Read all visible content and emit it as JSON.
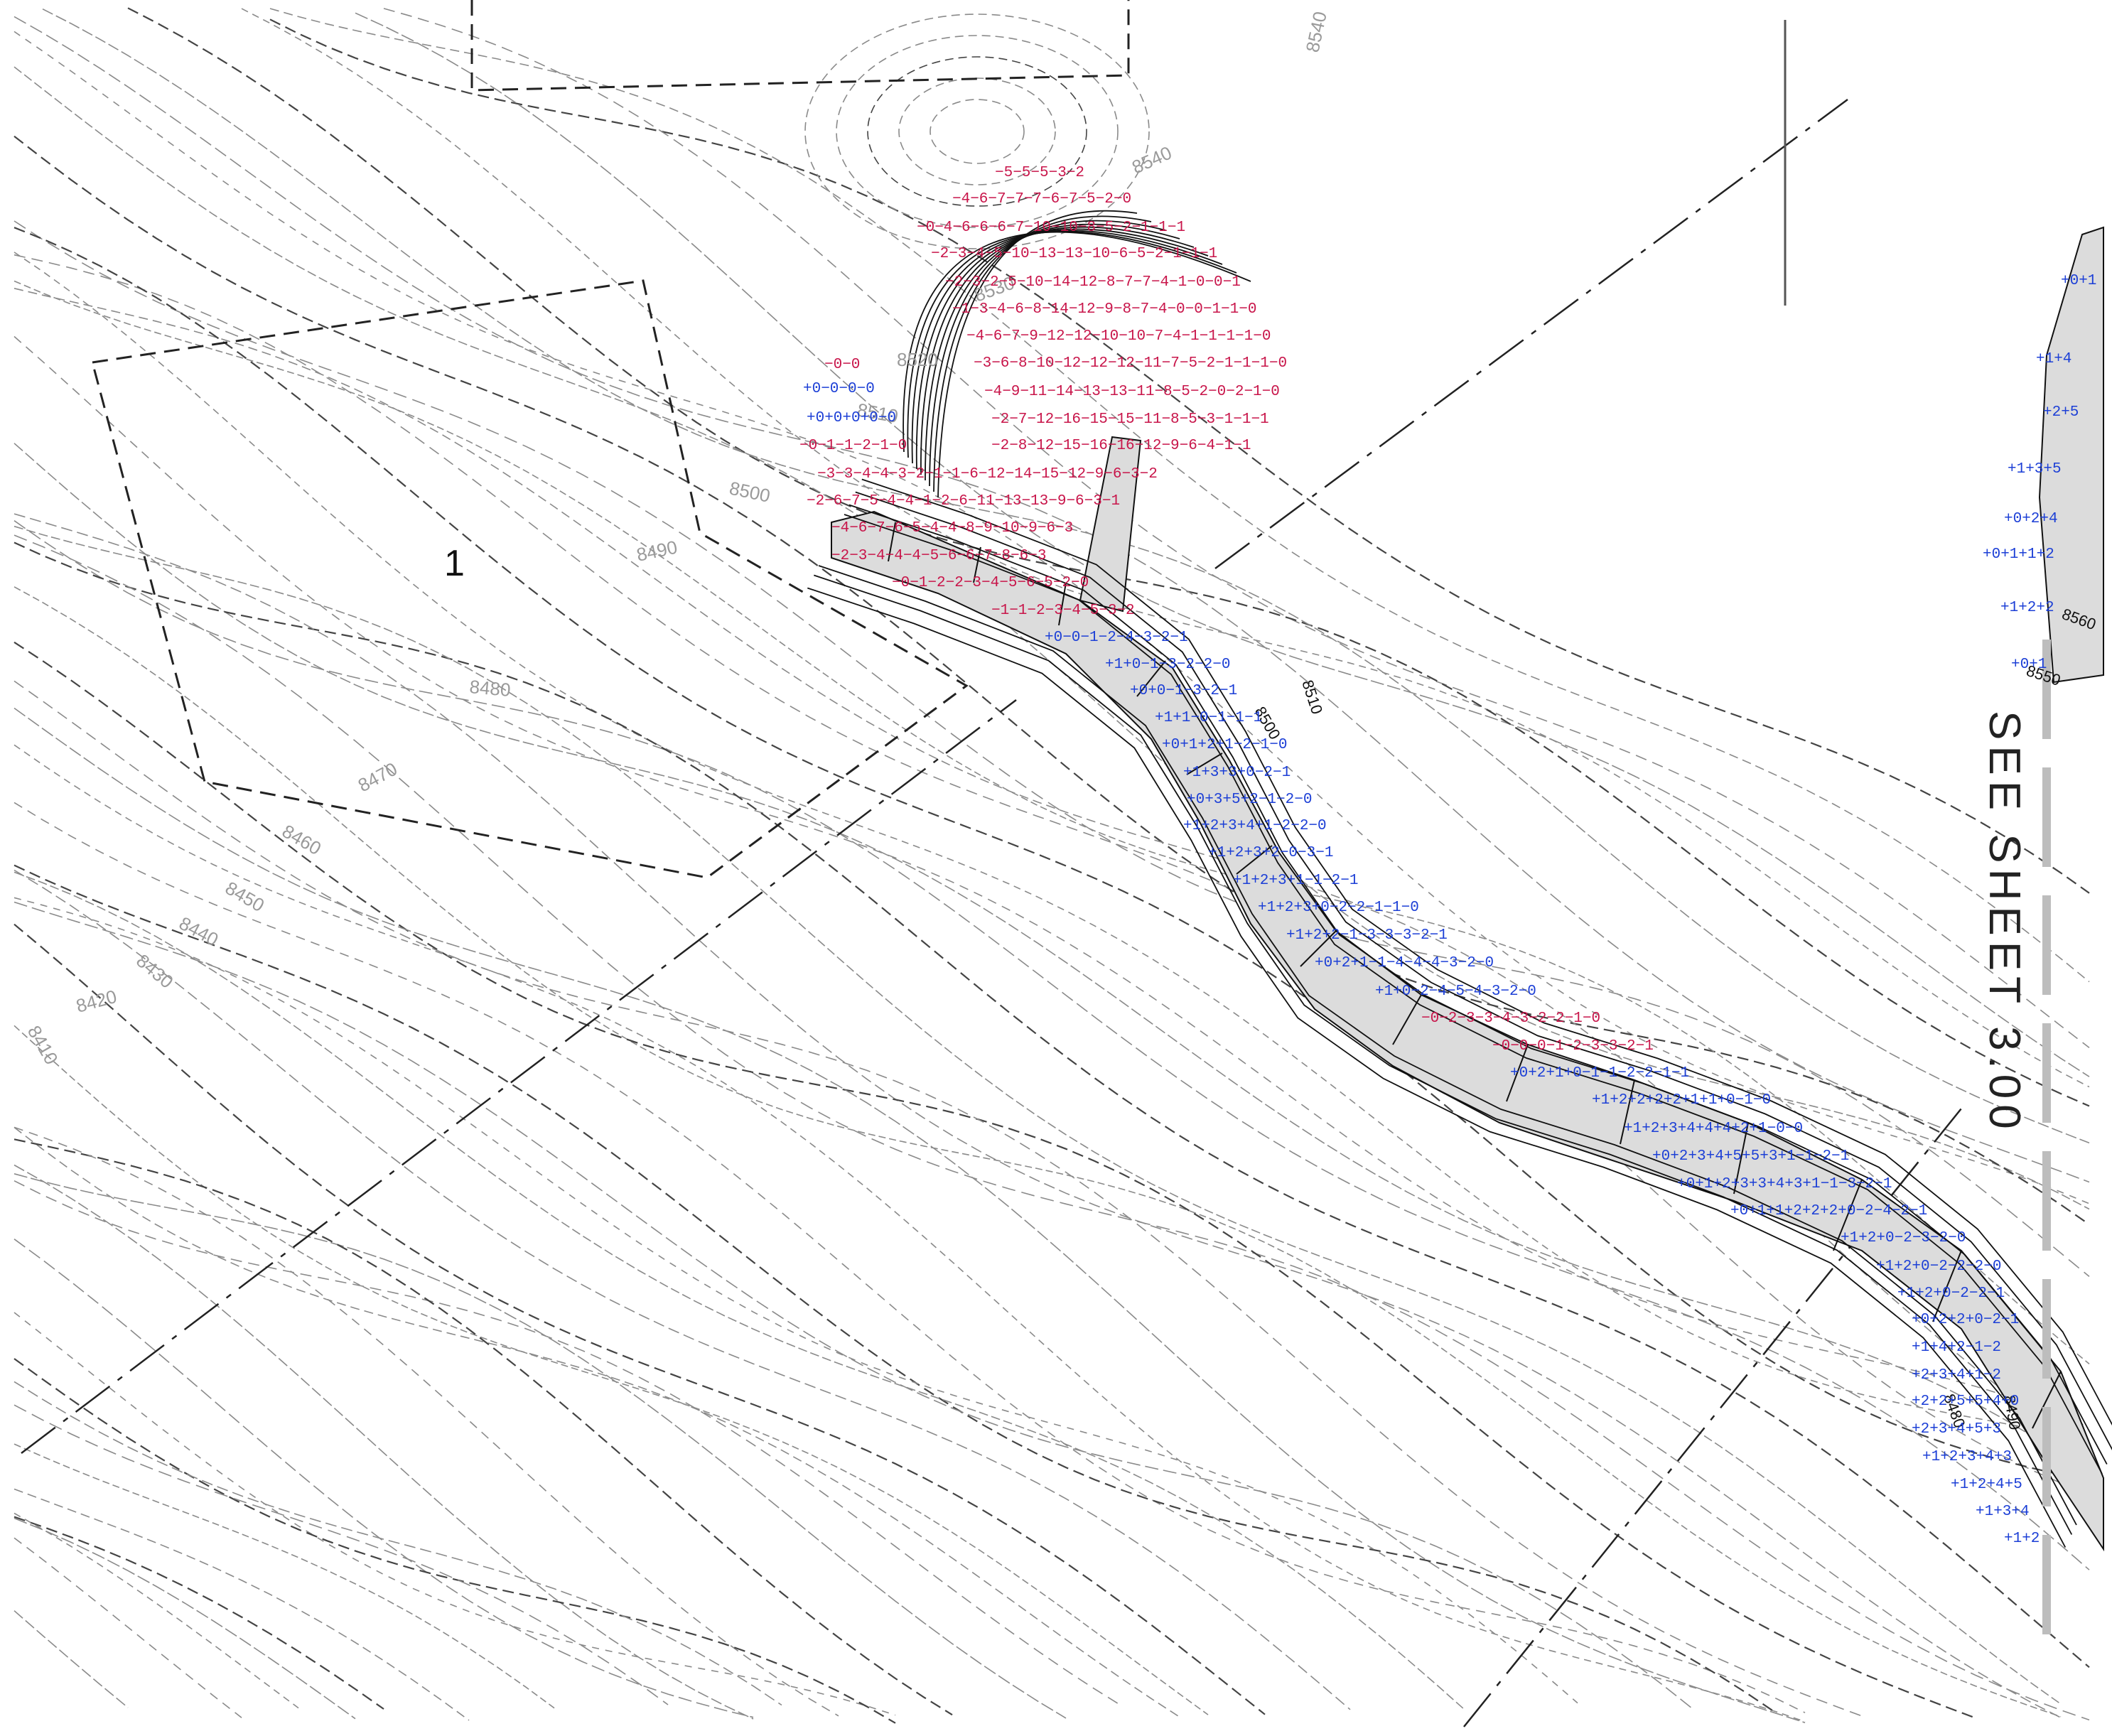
{
  "colors": {
    "background": "#ffffff",
    "existing_contour": "#8a8a8a",
    "existing_contour_dashed": "#444444",
    "proposed_contour": "#111111",
    "pavement_fill": "#dcdcdc",
    "cut_value": "#c8154a",
    "fill_value": "#1c3fd6",
    "match_line": "#bdbdbd"
  },
  "area_label": "1",
  "reference_note": "SEE SHEET 3.00",
  "existing_contour_labels": [
    "8540",
    "8540",
    "8530",
    "8520",
    "8510",
    "8500",
    "8490",
    "8480",
    "8470",
    "8460",
    "8450",
    "8440",
    "8430",
    "8420",
    "8410"
  ],
  "proposed_contour_labels": [
    "8510",
    "8500",
    "8560",
    "8550",
    "8480",
    "8490"
  ],
  "cut_fill_rows": [
    {
      "text": "−5−5−5−3−2",
      "type": "cut"
    },
    {
      "text": "−4−6−7−7−7−6−7−5−2−0",
      "type": "cut"
    },
    {
      "text": "−0−4−6−6−6−7−10−10−8−5−2−1−1−1",
      "type": "cut"
    },
    {
      "text": "−2−3−4−5−10−13−13−10−6−5−2−1−1−1",
      "type": "cut"
    },
    {
      "text": "−2−3−2−5−10−14−12−8−7−7−4−1−0−0−1",
      "type": "cut"
    },
    {
      "text": "−1−3−4−6−8−14−12−9−8−7−4−0−0−1−1−0",
      "type": "cut"
    },
    {
      "text": "−4−6−7−9−12−12−10−10−7−4−1−1−1−1−0",
      "type": "cut"
    },
    {
      "text": "−3−6−8−10−12−12−12−11−7−5−2−1−1−1−0",
      "type": "cut"
    },
    {
      "text": "−0−0",
      "type": "cut"
    },
    {
      "text": "+0−0−0−0",
      "type": "fill"
    },
    {
      "text": "+0+0+0+0−0",
      "type": "fill"
    },
    {
      "text": "−4−9−11−14−13−13−11−8−5−2−0−2−1−0",
      "type": "cut"
    },
    {
      "text": "−2−7−12−16−15−15−11−8−5−3−1−1−1",
      "type": "cut"
    },
    {
      "text": "−0−1−1−2−1−0",
      "type": "cut"
    },
    {
      "text": "−2−8−12−15−16−16−12−9−6−4−1−1",
      "type": "cut"
    },
    {
      "text": "−3−3−4−4−3−2−1−1−6−12−14−15−12−9−6−3−2",
      "type": "cut"
    },
    {
      "text": "−2−6−7−5−4−4−1−2−6−11−13−13−9−6−3−1",
      "type": "cut"
    },
    {
      "text": "−4−6−7−6−5−4−4−8−9−10−9−6−3",
      "type": "cut"
    },
    {
      "text": "−2−3−4−4−4−5−6−6−7−8−6−3",
      "type": "cut"
    },
    {
      "text": "−0−1−2−2−3−4−5−6−5−2−0",
      "type": "cut"
    },
    {
      "text": "−1−1−2−3−4−5−3−2",
      "type": "cut"
    },
    {
      "text": "+0−0−1−2−4−3−2−1",
      "type": "fill"
    },
    {
      "text": "+1+0−1−3−2−2−0",
      "type": "fill"
    },
    {
      "text": "+0+0−1−3−2−1",
      "type": "fill"
    },
    {
      "text": "+1+1−0−1−1−1",
      "type": "fill"
    },
    {
      "text": "+0+1+2+1−2−1−0",
      "type": "fill"
    },
    {
      "text": "+1+3+3+0−2−1",
      "type": "fill"
    },
    {
      "text": "+0+3+5+2−1−2−0",
      "type": "fill"
    },
    {
      "text": "+1+2+3+4+1−2−2−0",
      "type": "fill"
    },
    {
      "text": "+1+2+3+2−0−3−1",
      "type": "fill"
    },
    {
      "text": "+1+2+3+1−1−2−1",
      "type": "fill"
    },
    {
      "text": "+1+2+3+0−2−2−1−1−0",
      "type": "fill"
    },
    {
      "text": "+1+2+2−1−3−3−3−2−1",
      "type": "fill"
    },
    {
      "text": "+0+2+1−1−4−4−4−3−2−0",
      "type": "fill"
    },
    {
      "text": "+1+0−2−4−5−4−3−2−0",
      "type": "fill"
    },
    {
      "text": "−0−2−3−3−4−3−2−2−1−0",
      "type": "cut"
    },
    {
      "text": "−0−0−0−1−2−3−3−2−1",
      "type": "cut"
    },
    {
      "text": "+0+2+1+0−1−1−2−2−1−1",
      "type": "fill"
    },
    {
      "text": "+1+2+2+2+2+1+1+0−1−0",
      "type": "fill"
    },
    {
      "text": "+1+2+3+4+4+4+2+1−0−0",
      "type": "fill"
    },
    {
      "text": "+0+2+3+4+5+5+3+1−1−2−1",
      "type": "fill"
    },
    {
      "text": "+0+1+2+3+3+4+3+1−1−3−2−1",
      "type": "fill"
    },
    {
      "text": "+0+1+1+2+2+2+0−2−4−2−1",
      "type": "fill"
    },
    {
      "text": "+1+2+0−2−3−2−0",
      "type": "fill"
    },
    {
      "text": "+1+2+0−2−2−2−0",
      "type": "fill"
    },
    {
      "text": "+1+2+0−2−2−1",
      "type": "fill"
    },
    {
      "text": "+0+2+2+0−2−1",
      "type": "fill"
    },
    {
      "text": "+1+4+2−1−2",
      "type": "fill"
    },
    {
      "text": "+2+3+4+1−2",
      "type": "fill"
    },
    {
      "text": "+2+2+5+5+4+0",
      "type": "fill"
    },
    {
      "text": "+2+3+4+5+3",
      "type": "fill"
    },
    {
      "text": "+1+2+3+4+3",
      "type": "fill"
    },
    {
      "text": "+1+2+4+5",
      "type": "fill"
    },
    {
      "text": "+1+3+4",
      "type": "fill"
    },
    {
      "text": "+1+2",
      "type": "fill"
    },
    {
      "text": "+0+1",
      "type": "fill"
    },
    {
      "text": "+1+4",
      "type": "fill"
    },
    {
      "text": "+2+5",
      "type": "fill"
    },
    {
      "text": "+1+3+5",
      "type": "fill"
    },
    {
      "text": "+0+2+4",
      "type": "fill"
    },
    {
      "text": "+0+1+1+2",
      "type": "fill"
    },
    {
      "text": "+1+2+2",
      "type": "fill"
    },
    {
      "text": "+0+1",
      "type": "fill"
    }
  ]
}
